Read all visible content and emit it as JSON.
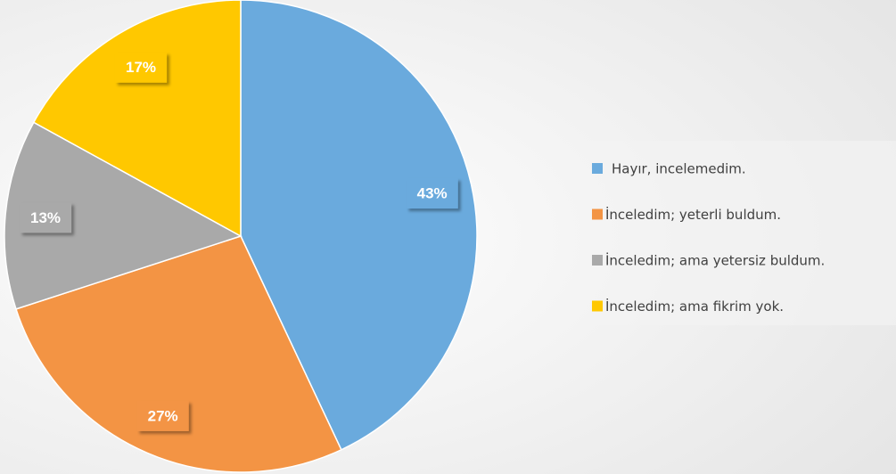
{
  "chart_data": {
    "type": "pie",
    "categories": [
      "Hayır, incelemedim.",
      "İnceledim; yeterli buldum.",
      "İnceledim; ama yetersiz buldum.",
      "İnceledim; ama fikrim yok."
    ],
    "values": [
      43,
      27,
      13,
      17
    ],
    "value_labels": [
      "43%",
      "27%",
      "13%",
      "17%"
    ],
    "colors": [
      "#6aaadd",
      "#f39444",
      "#a9a9a9",
      "#ffc800"
    ],
    "legend": "right"
  }
}
